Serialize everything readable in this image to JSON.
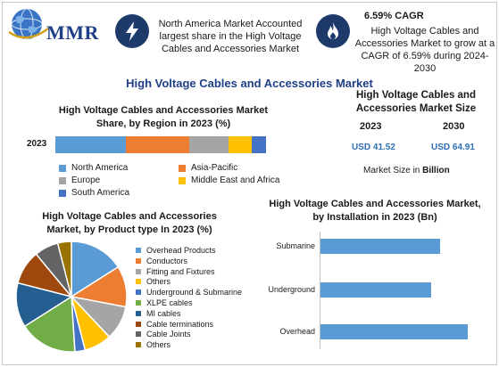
{
  "logo": {
    "text": "MMR"
  },
  "facts": {
    "fact1": "North America Market Accounted largest share in the High Voltage Cables and Accessories Market",
    "cagr_title": "6.59% CAGR",
    "cagr_text": "High Voltage Cables and Accessories Market to grow at a CAGR of 6.59% during 2024-2030"
  },
  "main_title": "High Voltage Cables and Accessories Market",
  "market_size": {
    "title": "High Voltage Cables and Accessories Market Size",
    "year1": "2023",
    "year2": "2030",
    "value1": "USD 41.52",
    "value2": "USD 64.91",
    "caption_prefix": "Market Size in ",
    "caption_unit": "Billion"
  },
  "icons": {
    "fact1": "lightning-bolt-icon",
    "cagr": "flame-icon",
    "logo": "globe-icon"
  },
  "chart_data": [
    {
      "type": "bar",
      "orientation": "horizontal-stacked",
      "title": "High Voltage Cables and Accessories Market Share, by Region in 2023 (%)",
      "categories": [
        "2023"
      ],
      "series": [
        {
          "name": "North America",
          "values": [
            34
          ],
          "color": "#5b9bd5"
        },
        {
          "name": "Asia-Pacific",
          "values": [
            30
          ],
          "color": "#ed7d31"
        },
        {
          "name": "Europe",
          "values": [
            19
          ],
          "color": "#a5a5a5"
        },
        {
          "name": "Middle East and Africa",
          "values": [
            11
          ],
          "color": "#ffc000"
        },
        {
          "name": "South America",
          "values": [
            7
          ],
          "color": "#4472c4"
        }
      ],
      "legend_position": "bottom"
    },
    {
      "type": "pie",
      "title": "High Voltage Cables and Accessories Market, by Product type In 2023 (%)",
      "labels": [
        "Overhead Products",
        "Conductors",
        "Fitting and Fixtures",
        "Others",
        "Underground & Submarine",
        "XLPE cables",
        "MI cables",
        "Cable terminations",
        "Cable Joints",
        "Others"
      ],
      "values": [
        16,
        12,
        10,
        8,
        3,
        17,
        13,
        10,
        7,
        4
      ],
      "colors": [
        "#5b9bd5",
        "#ed7d31",
        "#a5a5a5",
        "#ffc000",
        "#4472c4",
        "#70ad47",
        "#255e91",
        "#9e480e",
        "#636363",
        "#997300"
      ],
      "legend_position": "right"
    },
    {
      "type": "bar",
      "orientation": "horizontal",
      "title": "High Voltage Cables and Accessories Market, by Installation in 2023 (Bn)",
      "categories": [
        "Submarine",
        "Underground",
        "Overhead"
      ],
      "values": [
        13,
        12,
        16
      ],
      "xlim": [
        0,
        18
      ],
      "color": "#5b9bd5"
    }
  ]
}
